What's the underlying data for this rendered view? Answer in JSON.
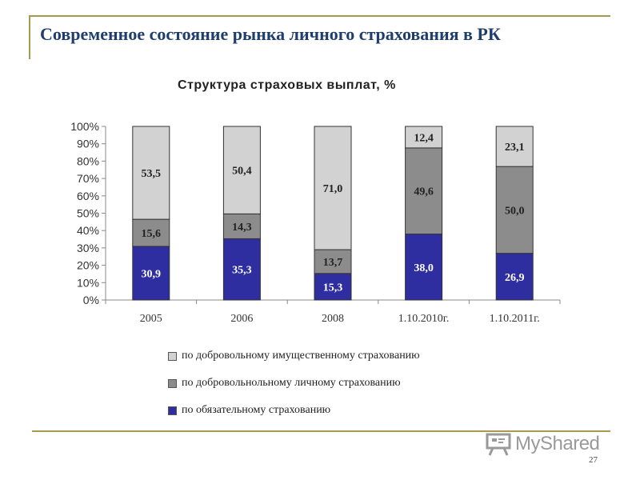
{
  "slide": {
    "title": "Современное состояние рынка личного страхования в РК",
    "page_number": "27",
    "watermark": "MyShared",
    "frame_color": "#a89a4c",
    "title_color": "#1f3e6e"
  },
  "chart_data": {
    "type": "bar",
    "stacked": true,
    "percent": true,
    "title": "Структура страховых выплат, %",
    "xlabel": "",
    "ylabel": "",
    "ylim": [
      0,
      100
    ],
    "yticks": [
      "0%",
      "10%",
      "20%",
      "30%",
      "40%",
      "50%",
      "60%",
      "70%",
      "80%",
      "90%",
      "100%"
    ],
    "categories": [
      "2005",
      "2006",
      "2008",
      "1.10.2010г.",
      "1.10.2011г."
    ],
    "series": [
      {
        "name": "по обязательному страхованию",
        "color": "#2e2ea0",
        "values": [
          30.9,
          35.3,
          15.3,
          38.0,
          26.9
        ],
        "labels": [
          "30,9",
          "35,3",
          "15,3",
          "38,0",
          "26,9"
        ]
      },
      {
        "name": "по добровольнольному личному страхованию",
        "color": "#8c8c8c",
        "values": [
          15.6,
          14.3,
          13.7,
          49.6,
          50.0
        ],
        "labels": [
          "15,6",
          "14,3",
          "13,7",
          "49,6",
          "50,0"
        ]
      },
      {
        "name": "по добровольному имущественному страхованию",
        "color": "#d2d2d2",
        "values": [
          53.5,
          50.4,
          71.0,
          12.4,
          23.1
        ],
        "labels": [
          "53,5",
          "50,4",
          "71,0",
          "12,4",
          "23,1"
        ]
      }
    ],
    "legend_order": [
      2,
      1,
      0
    ],
    "legend_position": "bottom",
    "grid": false
  }
}
